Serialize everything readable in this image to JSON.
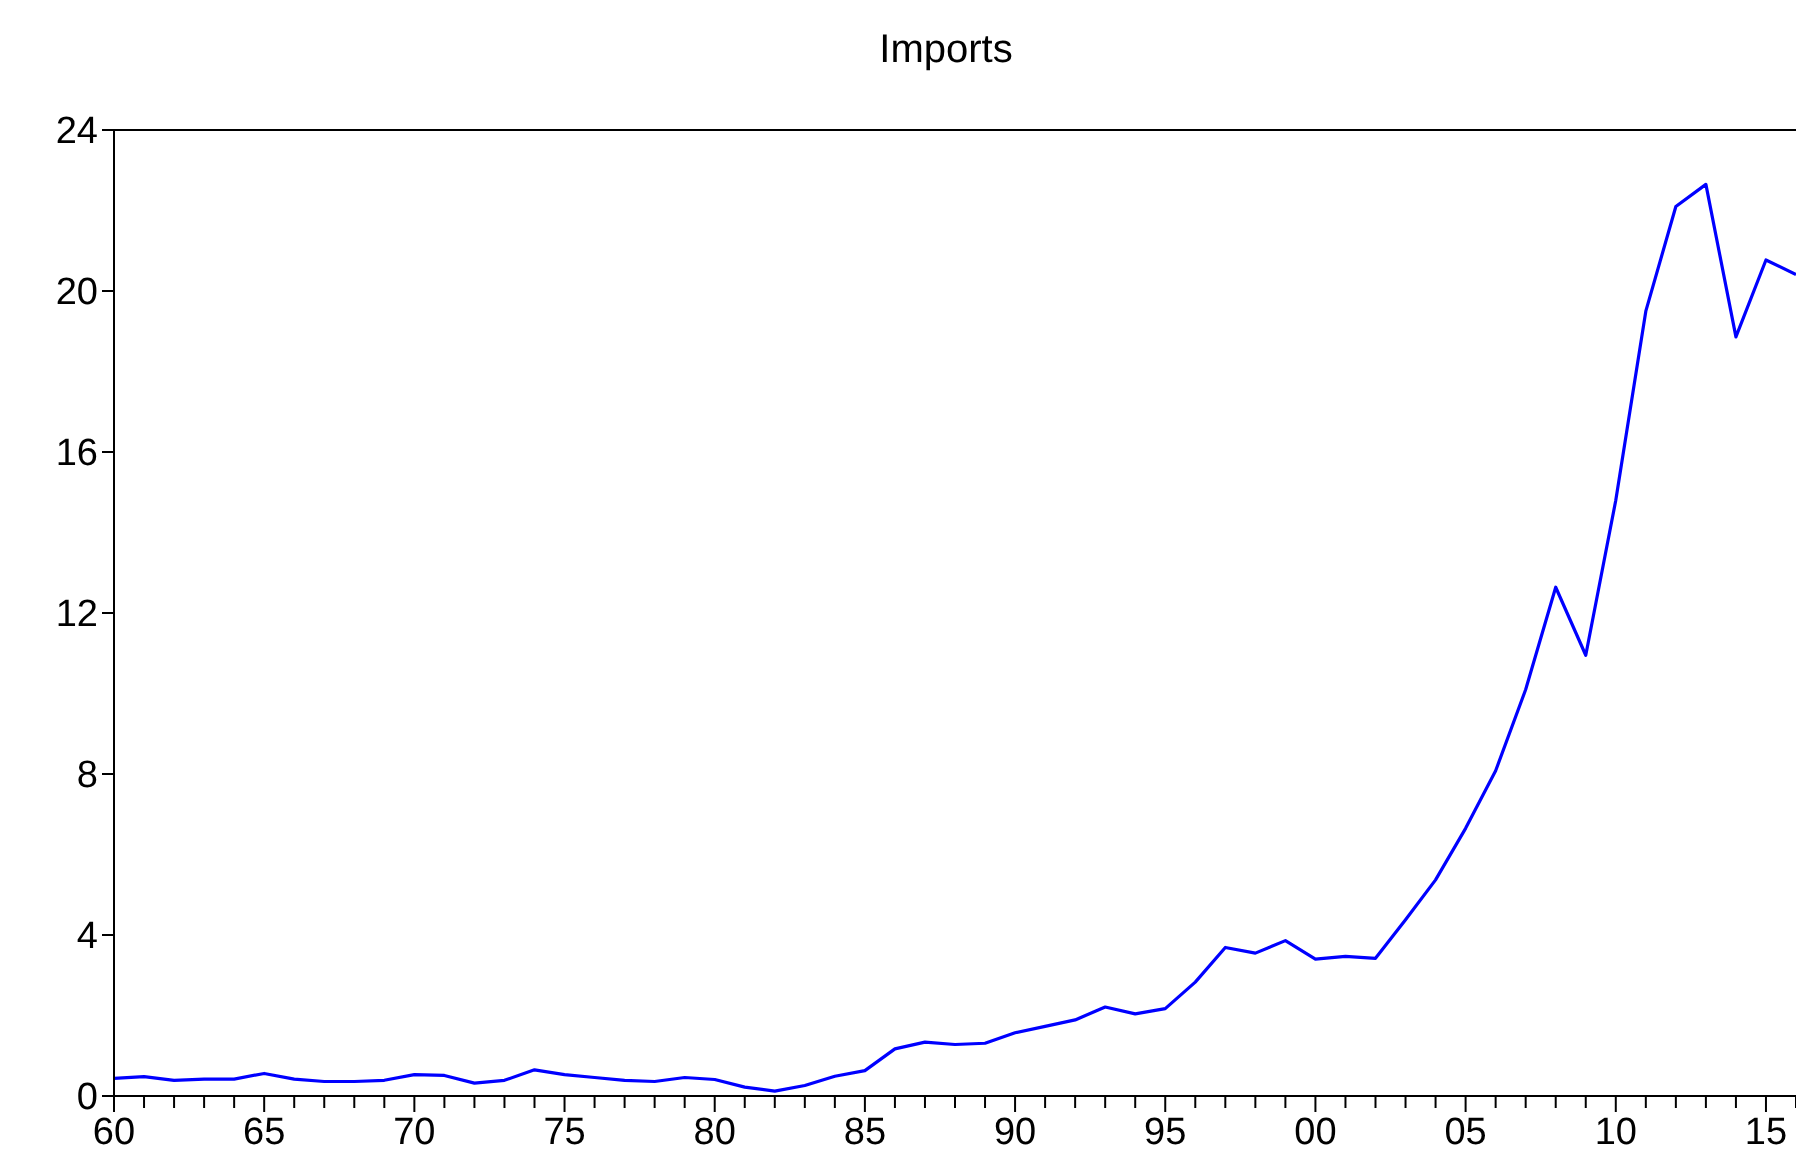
{
  "chart_data": {
    "type": "line",
    "title": "Imports",
    "x": [
      1960,
      1961,
      1962,
      1963,
      1964,
      1965,
      1966,
      1967,
      1968,
      1969,
      1970,
      1971,
      1972,
      1973,
      1974,
      1975,
      1976,
      1977,
      1978,
      1979,
      1980,
      1981,
      1982,
      1983,
      1984,
      1985,
      1986,
      1987,
      1988,
      1989,
      1990,
      1991,
      1992,
      1993,
      1994,
      1995,
      1996,
      1997,
      1998,
      1999,
      2000,
      2001,
      2002,
      2003,
      2004,
      2005,
      2006,
      2007,
      2008,
      2009,
      2010,
      2011,
      2012,
      2013,
      2014,
      2015,
      2016
    ],
    "series": [
      {
        "color": "#0000ff",
        "values": [
          0.44,
          0.48,
          0.39,
          0.42,
          0.42,
          0.56,
          0.42,
          0.36,
          0.36,
          0.39,
          0.53,
          0.51,
          0.32,
          0.39,
          0.65,
          0.53,
          0.46,
          0.39,
          0.36,
          0.46,
          0.41,
          0.22,
          0.12,
          0.26,
          0.49,
          0.63,
          1.17,
          1.34,
          1.28,
          1.31,
          1.57,
          1.73,
          1.89,
          2.21,
          2.04,
          2.17,
          2.83,
          3.69,
          3.55,
          3.86,
          3.4,
          3.47,
          3.42,
          4.38,
          5.37,
          6.65,
          8.08,
          10.1,
          12.64,
          10.95,
          14.8,
          19.5,
          22.1,
          22.65,
          18.86,
          20.77,
          20.41
        ]
      }
    ],
    "xlim": [
      1960,
      2016
    ],
    "xticks": [
      {
        "value": 1960,
        "label": "60"
      },
      {
        "value": 1961,
        "label": null
      },
      {
        "value": 1962,
        "label": null
      },
      {
        "value": 1963,
        "label": null
      },
      {
        "value": 1964,
        "label": null
      },
      {
        "value": 1965,
        "label": "65"
      },
      {
        "value": 1966,
        "label": null
      },
      {
        "value": 1967,
        "label": null
      },
      {
        "value": 1968,
        "label": null
      },
      {
        "value": 1969,
        "label": null
      },
      {
        "value": 1970,
        "label": "70"
      },
      {
        "value": 1971,
        "label": null
      },
      {
        "value": 1972,
        "label": null
      },
      {
        "value": 1973,
        "label": null
      },
      {
        "value": 1974,
        "label": null
      },
      {
        "value": 1975,
        "label": "75"
      },
      {
        "value": 1976,
        "label": null
      },
      {
        "value": 1977,
        "label": null
      },
      {
        "value": 1978,
        "label": null
      },
      {
        "value": 1979,
        "label": null
      },
      {
        "value": 1980,
        "label": "80"
      },
      {
        "value": 1981,
        "label": null
      },
      {
        "value": 1982,
        "label": null
      },
      {
        "value": 1983,
        "label": null
      },
      {
        "value": 1984,
        "label": null
      },
      {
        "value": 1985,
        "label": "85"
      },
      {
        "value": 1986,
        "label": null
      },
      {
        "value": 1987,
        "label": null
      },
      {
        "value": 1988,
        "label": null
      },
      {
        "value": 1989,
        "label": null
      },
      {
        "value": 1990,
        "label": "90"
      },
      {
        "value": 1991,
        "label": null
      },
      {
        "value": 1992,
        "label": null
      },
      {
        "value": 1993,
        "label": null
      },
      {
        "value": 1994,
        "label": null
      },
      {
        "value": 1995,
        "label": "95"
      },
      {
        "value": 1996,
        "label": null
      },
      {
        "value": 1997,
        "label": null
      },
      {
        "value": 1998,
        "label": null
      },
      {
        "value": 1999,
        "label": null
      },
      {
        "value": 2000,
        "label": "00"
      },
      {
        "value": 2001,
        "label": null
      },
      {
        "value": 2002,
        "label": null
      },
      {
        "value": 2003,
        "label": null
      },
      {
        "value": 2004,
        "label": null
      },
      {
        "value": 2005,
        "label": "05"
      },
      {
        "value": 2006,
        "label": null
      },
      {
        "value": 2007,
        "label": null
      },
      {
        "value": 2008,
        "label": null
      },
      {
        "value": 2009,
        "label": null
      },
      {
        "value": 2010,
        "label": "10"
      },
      {
        "value": 2011,
        "label": null
      },
      {
        "value": 2012,
        "label": null
      },
      {
        "value": 2013,
        "label": null
      },
      {
        "value": 2014,
        "label": null
      },
      {
        "value": 2015,
        "label": "15"
      },
      {
        "value": 2016,
        "label": null
      }
    ],
    "ylim": [
      0,
      24
    ],
    "yticks": [
      0,
      4,
      8,
      12,
      16,
      20,
      24
    ]
  }
}
